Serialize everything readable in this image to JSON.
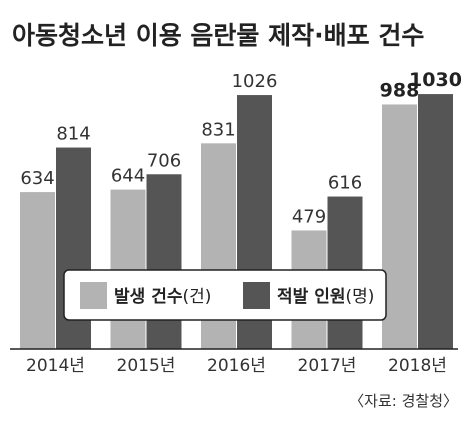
{
  "chart_data": {
    "type": "bar",
    "title": "아동청소년 이용 음란물 제작·배포 건수",
    "categories": [
      "2014년",
      "2015년",
      "2016년",
      "2017년",
      "2018년"
    ],
    "series": [
      {
        "name": "발생 건수",
        "unit": "(건)",
        "color": "#b3b3b3",
        "values": [
          634,
          644,
          831,
          479,
          988
        ]
      },
      {
        "name": "적발 인원",
        "unit": "(명)",
        "color": "#555555",
        "values": [
          814,
          706,
          1026,
          616,
          1030
        ]
      }
    ],
    "ylim": [
      0,
      1100
    ],
    "highlight_category": "2018년",
    "legend_position": "bottom-center",
    "source": "〈자료: 경찰청〉",
    "grid": false
  }
}
